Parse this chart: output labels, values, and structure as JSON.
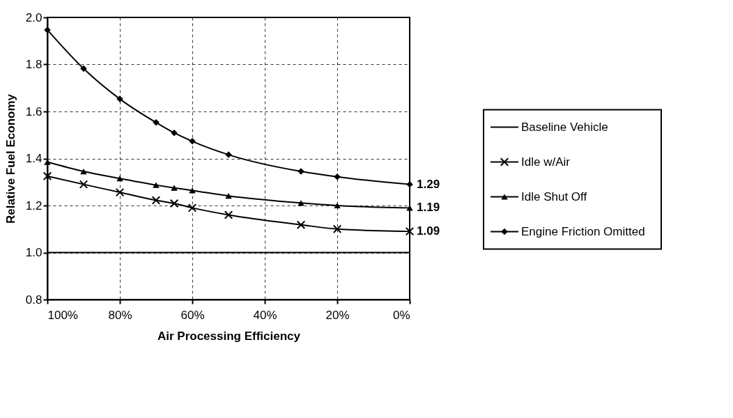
{
  "chart_data": {
    "type": "line",
    "xlabel": "Air Processing Efficiency",
    "ylabel": "Relative Fuel Economy",
    "x": [
      100,
      90,
      80,
      70,
      65,
      60,
      50,
      30,
      20,
      0
    ],
    "xlim": [
      100,
      0
    ],
    "xticks": [
      {
        "value": 100,
        "label": "100%"
      },
      {
        "value": 80,
        "label": "80%"
      },
      {
        "value": 60,
        "label": "60%"
      },
      {
        "value": 40,
        "label": "40%"
      },
      {
        "value": 20,
        "label": "20%"
      },
      {
        "value": 0,
        "label": "0%"
      }
    ],
    "ylim": [
      0.8,
      2.0
    ],
    "yticks": [
      {
        "value": 0.8,
        "label": "0.8"
      },
      {
        "value": 1.0,
        "label": "1.0"
      },
      {
        "value": 1.2,
        "label": "1.2"
      },
      {
        "value": 1.4,
        "label": "1.4"
      },
      {
        "value": 1.6,
        "label": "1.6"
      },
      {
        "value": 1.8,
        "label": "1.8"
      },
      {
        "value": 2.0,
        "label": "2.0"
      }
    ],
    "grid": true,
    "legend": "right",
    "line_style": "solid",
    "series": [
      {
        "name": "Baseline Vehicle",
        "color": "#000000",
        "marker": "none",
        "x": [
          100,
          0
        ],
        "values": [
          1.0,
          1.0
        ]
      },
      {
        "name": "Idle w/Air",
        "color": "#000000",
        "marker": "cross",
        "values": [
          1.325,
          1.29,
          1.256,
          1.222,
          1.209,
          1.19,
          1.16,
          1.118,
          1.1,
          1.09
        ],
        "value_labels": [
          null,
          null,
          null,
          null,
          null,
          null,
          null,
          null,
          null,
          "1.09"
        ]
      },
      {
        "name": "Idle Shut Off",
        "color": "#000000",
        "marker": "triangle",
        "values": [
          1.385,
          1.345,
          1.315,
          1.287,
          1.275,
          1.264,
          1.241,
          1.211,
          1.2,
          1.19
        ],
        "value_labels": [
          null,
          null,
          null,
          null,
          null,
          null,
          null,
          null,
          null,
          "1.19"
        ]
      },
      {
        "name": "Engine Friction Omitted",
        "color": "#000000",
        "marker": "diamond",
        "values": [
          1.947,
          1.782,
          1.653,
          1.553,
          1.509,
          1.473,
          1.416,
          1.345,
          1.322,
          1.29
        ],
        "value_labels": [
          null,
          null,
          null,
          null,
          null,
          null,
          null,
          null,
          null,
          "1.29"
        ]
      }
    ]
  }
}
